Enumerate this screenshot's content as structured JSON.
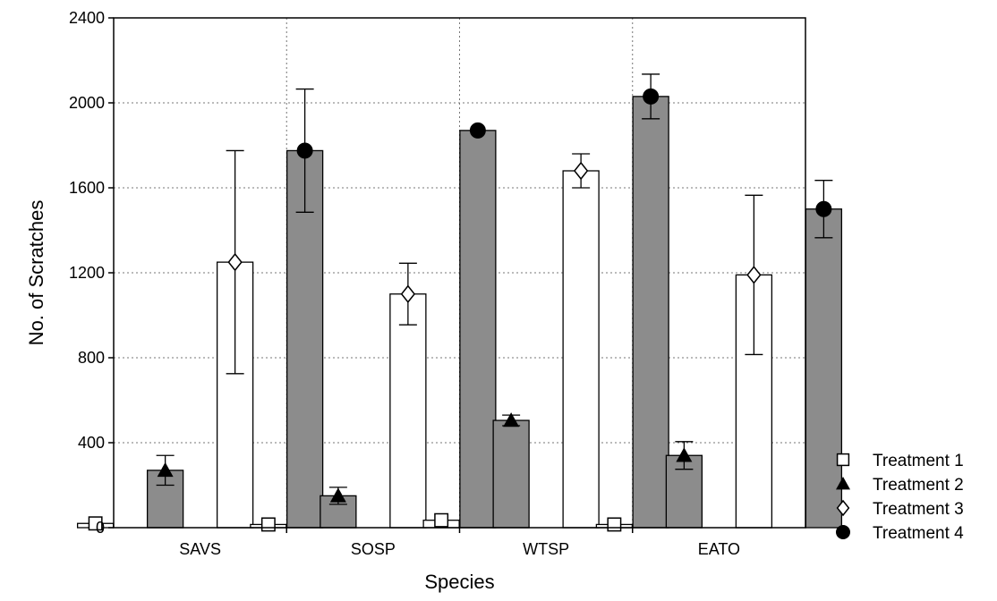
{
  "chart_data": {
    "type": "bar",
    "xlabel": "Species",
    "ylabel": "No. of Scratches",
    "ylim": [
      0,
      2400
    ],
    "yticks": [
      0,
      400,
      800,
      1200,
      1600,
      2000,
      2400
    ],
    "grid": true,
    "legend_position": "right",
    "categories": [
      "SAVS",
      "SOSP",
      "WTSP",
      "EATO"
    ],
    "series": [
      {
        "name": "Treatment 1",
        "marker": "open-square",
        "fill": "#ffffff",
        "values": [
          20,
          15,
          35,
          15
        ],
        "errors": [
          0,
          0,
          0,
          0
        ]
      },
      {
        "name": "Treatment 2",
        "marker": "filled-triangle",
        "fill": "#8c8c8c",
        "values": [
          270,
          150,
          505,
          340
        ],
        "errors": [
          70,
          40,
          25,
          65
        ]
      },
      {
        "name": "Treatment 3",
        "marker": "open-diamond",
        "fill": "#ffffff",
        "values": [
          1250,
          1100,
          1680,
          1190
        ],
        "errors": [
          525,
          145,
          80,
          375
        ]
      },
      {
        "name": "Treatment 4",
        "marker": "filled-circle",
        "fill": "#8c8c8c",
        "values": [
          1775,
          1870,
          2030,
          1500
        ],
        "errors": [
          290,
          0,
          105,
          135
        ]
      }
    ]
  }
}
